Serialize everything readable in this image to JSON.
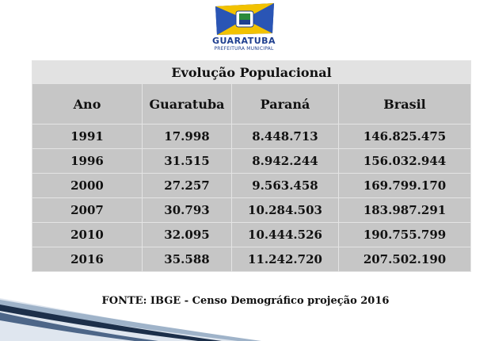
{
  "logo": {
    "name": "GUARATUBA",
    "subtitle": "PREFEITURA MUNICIPAL"
  },
  "table": {
    "title": "Evolução Populacional",
    "headers": [
      "Ano",
      "Guaratuba",
      "Paraná",
      "Brasil"
    ],
    "rows": [
      [
        "1991",
        "17.998",
        "8.448.713",
        "146.825.475"
      ],
      [
        "1996",
        "31.515",
        "8.942.244",
        "156.032.944"
      ],
      [
        "2000",
        "27.257",
        "9.563.458",
        "169.799.170"
      ],
      [
        "2007",
        "30.793",
        "10.284.503",
        "183.987.291"
      ],
      [
        "2010",
        "32.095",
        "10.444.526",
        "190.755.799"
      ],
      [
        "2016",
        "35.588",
        "11.242.720",
        "207.502.190"
      ]
    ]
  },
  "source": "FONTE: IBGE - Censo Demográfico projeção  2016",
  "colors": {
    "header_bg": "#c6c6c6",
    "title_bg": "#e2e2e2",
    "logo_blue": "#1f3f8f",
    "logo_yellow": "#f2c200"
  }
}
